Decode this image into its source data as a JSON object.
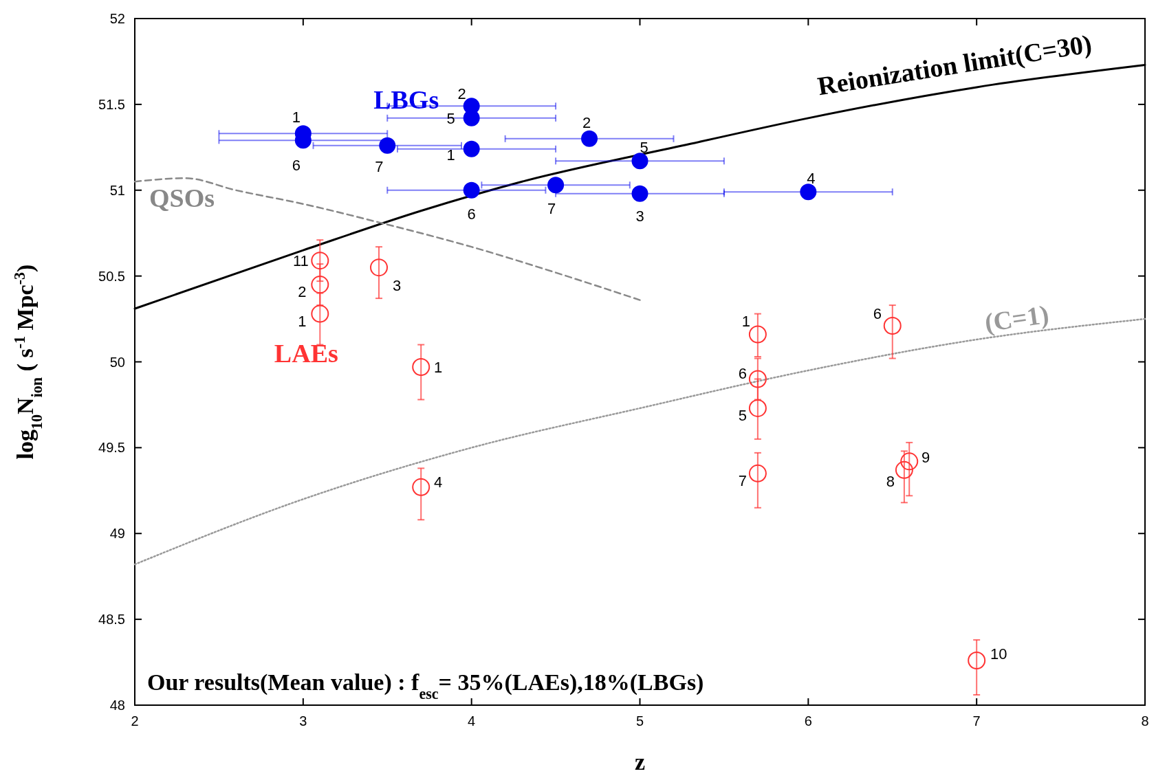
{
  "chart_data": {
    "type": "scatter",
    "xlabel": "z",
    "ylabel": "log$_{10}$N$_{ion}$ ( s$^{-1}$ Mpc$^{-3}$)",
    "xlim": [
      2,
      8
    ],
    "xticks": [
      2,
      3,
      4,
      5,
      6,
      7,
      8
    ],
    "ylim": [
      48,
      52
    ],
    "yticks": [
      48,
      48.5,
      49,
      49.5,
      50,
      50.5,
      51,
      51.5,
      52
    ],
    "grid": false,
    "series": [
      {
        "name": "LBGs",
        "marker": "circle",
        "color": "#0000ee",
        "x": [
          3,
          3,
          3.5,
          4,
          4,
          4,
          4,
          4.5,
          4.7,
          5,
          5,
          6
        ],
        "values": [
          51.33,
          51.29,
          51.26,
          51.49,
          51.42,
          51.24,
          51.0,
          51.03,
          51.3,
          51.17,
          50.98,
          50.99
        ],
        "xerrors": [
          [
            2.5,
            3.5
          ],
          [
            2.5,
            3.5
          ],
          [
            3.06,
            3.94
          ],
          [
            3.5,
            4.5
          ],
          [
            3.5,
            4.5
          ],
          [
            3.56,
            4.5
          ],
          [
            3.5,
            4.44
          ],
          [
            4.06,
            4.94
          ],
          [
            4.2,
            5.2
          ],
          [
            4.5,
            5.5
          ],
          [
            4.5,
            5.5
          ],
          [
            5.5,
            6.5
          ]
        ]
      },
      {
        "name": "LAEs",
        "marker": "circle",
        "color": "#ff3333",
        "x": [
          3.1,
          3.1,
          3.1,
          3.45,
          3.7,
          3.7,
          5.7,
          5.7,
          5.7,
          5.7,
          6.5,
          6.57,
          6.6,
          7
        ],
        "values": [
          50.59,
          50.45,
          50.28,
          50.55,
          49.97,
          49.27,
          50.16,
          49.9,
          49.73,
          49.35,
          50.21,
          49.37,
          49.42,
          48.26
        ],
        "errors": [
          [
            50.47,
            50.71
          ],
          [
            50.33,
            50.57
          ],
          [
            50.1,
            50.4
          ],
          [
            50.37,
            50.67
          ],
          [
            49.78,
            50.1
          ],
          [
            49.08,
            49.38
          ],
          [
            50.03,
            50.28
          ],
          [
            49.78,
            50.02
          ],
          [
            49.55,
            49.9
          ],
          [
            49.15,
            49.47
          ],
          [
            50.02,
            50.33
          ],
          [
            49.18,
            49.48
          ],
          [
            49.22,
            49.53
          ],
          [
            48.06,
            48.38
          ]
        ]
      },
      {
        "name": "Reionization limit(C=30)",
        "type": "line",
        "line_style": "solid",
        "color": "#000000",
        "x": [
          2,
          3,
          3.7,
          4.3,
          5.3,
          6,
          7,
          8
        ],
        "values": [
          50.31,
          50.65,
          50.88,
          51.05,
          51.27,
          51.42,
          51.6,
          51.73
        ]
      },
      {
        "name": "QSOs",
        "type": "line",
        "line_style": "dashed",
        "color": "#888888",
        "x": [
          2,
          2.3,
          2.6,
          3,
          3.5,
          4,
          4.5,
          5
        ],
        "values": [
          51.05,
          51.07,
          51.0,
          50.92,
          50.8,
          50.67,
          50.52,
          50.36
        ]
      },
      {
        "name": "(C=1)",
        "type": "line",
        "line_style": "dotted",
        "color": "#999999",
        "x": [
          2,
          3,
          4,
          5,
          6,
          7,
          8
        ],
        "values": [
          48.82,
          49.2,
          49.5,
          49.73,
          49.95,
          50.13,
          50.25
        ]
      }
    ],
    "annotations": [
      {
        "text": "1",
        "x": 3,
        "y": 51.33
      },
      {
        "text": "6",
        "x": 3,
        "y": 51.29
      },
      {
        "text": "7",
        "x": 3.5,
        "y": 51.26
      },
      {
        "text": "2",
        "x": 4,
        "y": 51.49
      },
      {
        "text": "5",
        "x": 4,
        "y": 51.42
      },
      {
        "text": "1",
        "x": 4,
        "y": 51.24
      },
      {
        "text": "6",
        "x": 4,
        "y": 51.0
      },
      {
        "text": "7",
        "x": 4.5,
        "y": 51.03
      },
      {
        "text": "2",
        "x": 4.7,
        "y": 51.3
      },
      {
        "text": "5",
        "x": 5,
        "y": 51.17
      },
      {
        "text": "3",
        "x": 5,
        "y": 50.98
      },
      {
        "text": "4",
        "x": 6,
        "y": 50.99
      },
      {
        "text": "11",
        "x": 3.1,
        "y": 50.59
      },
      {
        "text": "2",
        "x": 3.1,
        "y": 50.45
      },
      {
        "text": "1",
        "x": 3.1,
        "y": 50.28
      },
      {
        "text": "3",
        "x": 3.45,
        "y": 50.55
      },
      {
        "text": "1",
        "x": 3.7,
        "y": 49.97
      },
      {
        "text": "4",
        "x": 3.7,
        "y": 49.27
      },
      {
        "text": "1",
        "x": 5.7,
        "y": 50.16
      },
      {
        "text": "6",
        "x": 5.7,
        "y": 49.9
      },
      {
        "text": "5",
        "x": 5.7,
        "y": 49.73
      },
      {
        "text": "7",
        "x": 5.7,
        "y": 49.35
      },
      {
        "text": "6",
        "x": 6.5,
        "y": 50.21
      },
      {
        "text": "8",
        "x": 6.57,
        "y": 49.37
      },
      {
        "text": "9",
        "x": 6.6,
        "y": 49.42
      },
      {
        "text": "10",
        "x": 7,
        "y": 48.26
      },
      "Our results(Mean value) :  f$_{esc}$= 35%(LAEs),18%(LBGs)"
    ]
  }
}
